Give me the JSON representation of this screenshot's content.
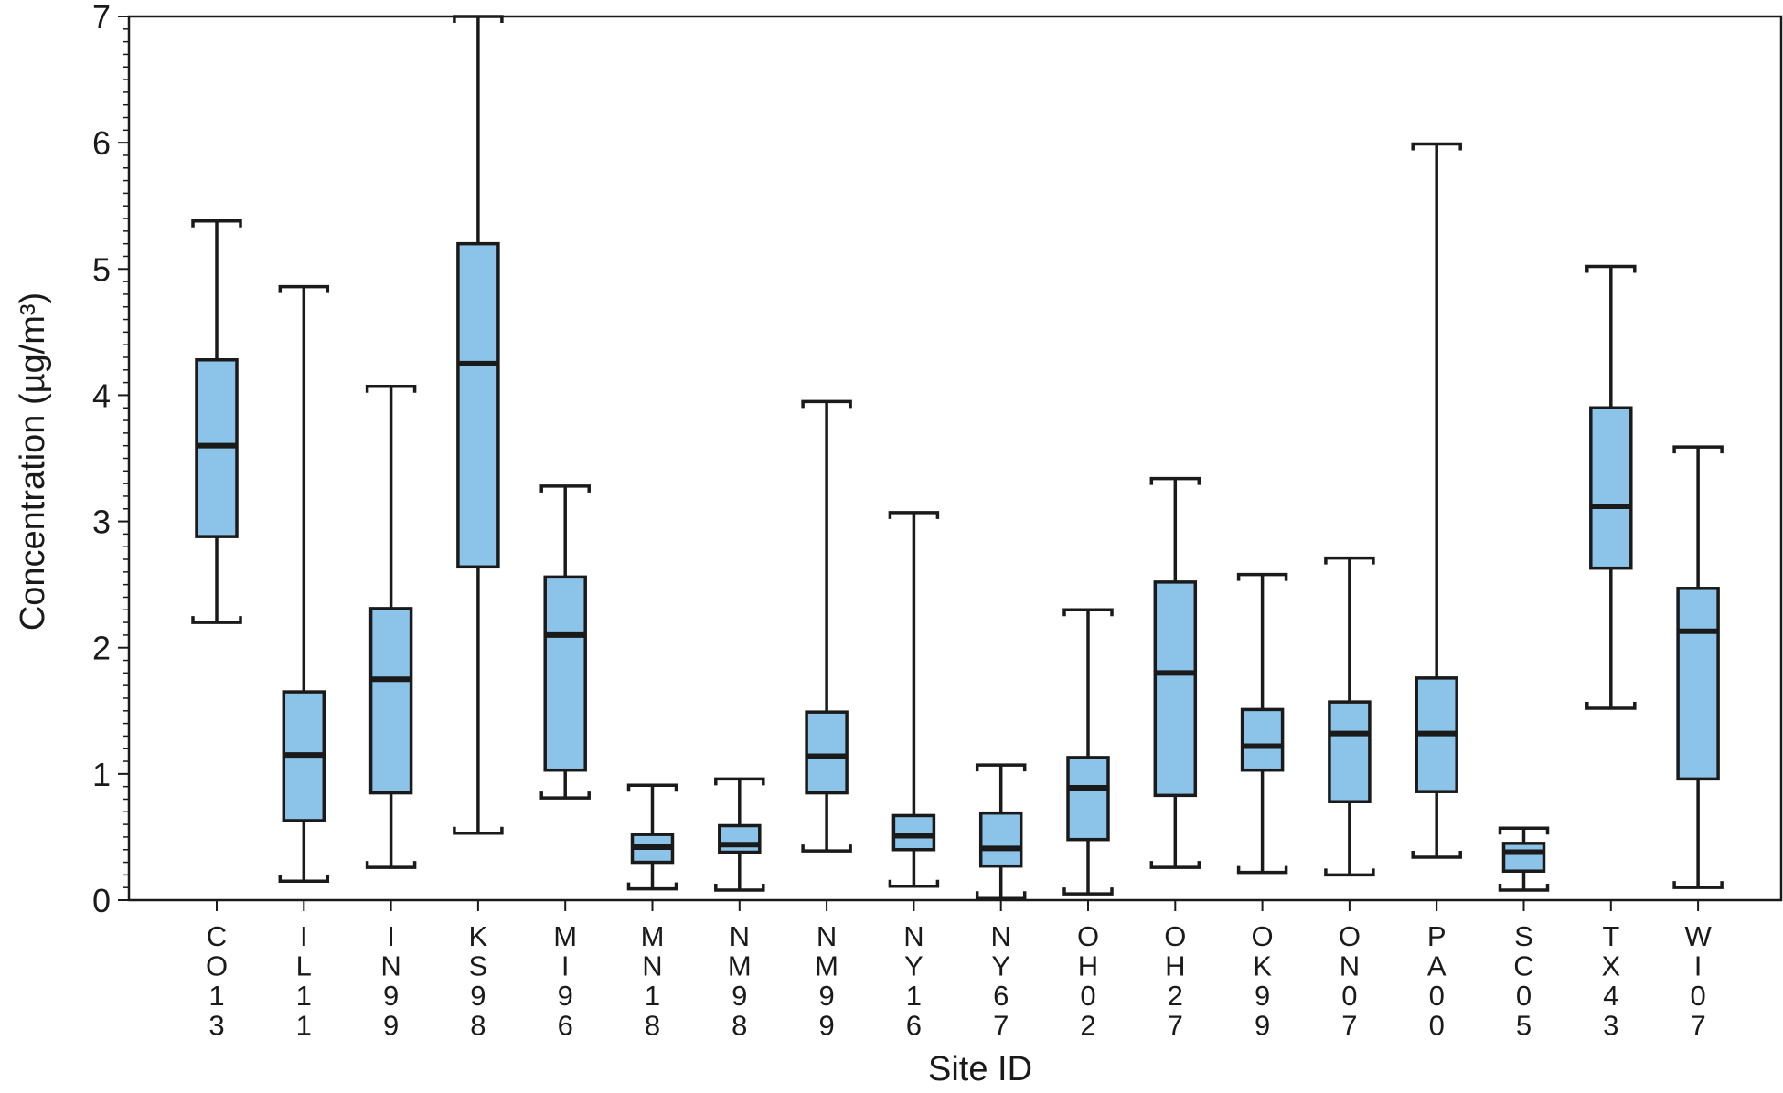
{
  "chart_data": {
    "type": "boxplot",
    "xlabel": "Site ID",
    "ylabel": "Concentration (µg/m³)",
    "ylim": [
      0,
      7
    ],
    "yticks": [
      0,
      1,
      2,
      3,
      4,
      5,
      6,
      7
    ],
    "ytick_labels": [
      "0",
      "1",
      "2",
      "3",
      "4",
      "5",
      "6",
      "7"
    ],
    "box_color": "#8cc3e8",
    "line_color": "#1a1a1a",
    "categories": [
      "CO13",
      "IL11",
      "IN99",
      "KS98",
      "MI96",
      "MN18",
      "NM98",
      "NM99",
      "NY16",
      "NY67",
      "OH02",
      "OH27",
      "OK99",
      "ON07",
      "PA00",
      "SC05",
      "TX43",
      "WI07"
    ],
    "series": [
      {
        "boxes": [
          {
            "site": "CO13",
            "min": 2.2,
            "q1": 2.88,
            "median": 3.6,
            "q3": 4.28,
            "max": 5.38
          },
          {
            "site": "IL11",
            "min": 0.15,
            "q1": 0.63,
            "median": 1.15,
            "q3": 1.65,
            "max": 4.86
          },
          {
            "site": "IN99",
            "min": 0.26,
            "q1": 0.85,
            "median": 1.75,
            "q3": 2.31,
            "max": 4.07
          },
          {
            "site": "KS98",
            "min": 0.53,
            "q1": 2.64,
            "median": 4.25,
            "q3": 5.2,
            "max": 7.0
          },
          {
            "site": "MI96",
            "min": 0.81,
            "q1": 1.03,
            "median": 2.1,
            "q3": 2.56,
            "max": 3.28
          },
          {
            "site": "MN18",
            "min": 0.09,
            "q1": 0.3,
            "median": 0.42,
            "q3": 0.52,
            "max": 0.91
          },
          {
            "site": "NM98",
            "min": 0.08,
            "q1": 0.38,
            "median": 0.44,
            "q3": 0.59,
            "max": 0.96
          },
          {
            "site": "NM99",
            "min": 0.39,
            "q1": 0.85,
            "median": 1.14,
            "q3": 1.49,
            "max": 3.95
          },
          {
            "site": "NY16",
            "min": 0.11,
            "q1": 0.4,
            "median": 0.51,
            "q3": 0.67,
            "max": 3.07
          },
          {
            "site": "NY67",
            "min": 0.02,
            "q1": 0.27,
            "median": 0.41,
            "q3": 0.69,
            "max": 1.07
          },
          {
            "site": "OH02",
            "min": 0.05,
            "q1": 0.48,
            "median": 0.89,
            "q3": 1.13,
            "max": 2.3
          },
          {
            "site": "OH27",
            "min": 0.26,
            "q1": 0.83,
            "median": 1.8,
            "q3": 2.52,
            "max": 3.34
          },
          {
            "site": "OK99",
            "min": 0.22,
            "q1": 1.03,
            "median": 1.22,
            "q3": 1.51,
            "max": 2.58
          },
          {
            "site": "ON07",
            "min": 0.2,
            "q1": 0.78,
            "median": 1.32,
            "q3": 1.57,
            "max": 2.71
          },
          {
            "site": "PA00",
            "min": 0.34,
            "q1": 0.86,
            "median": 1.32,
            "q3": 1.76,
            "max": 5.99
          },
          {
            "site": "SC05",
            "min": 0.08,
            "q1": 0.23,
            "median": 0.38,
            "q3": 0.45,
            "max": 0.57
          },
          {
            "site": "TX43",
            "min": 1.52,
            "q1": 2.63,
            "median": 3.12,
            "q3": 3.9,
            "max": 5.02
          },
          {
            "site": "WI07",
            "min": 0.1,
            "q1": 0.96,
            "median": 2.13,
            "q3": 2.47,
            "max": 3.59
          }
        ]
      }
    ],
    "grid": false,
    "legend": "none"
  }
}
